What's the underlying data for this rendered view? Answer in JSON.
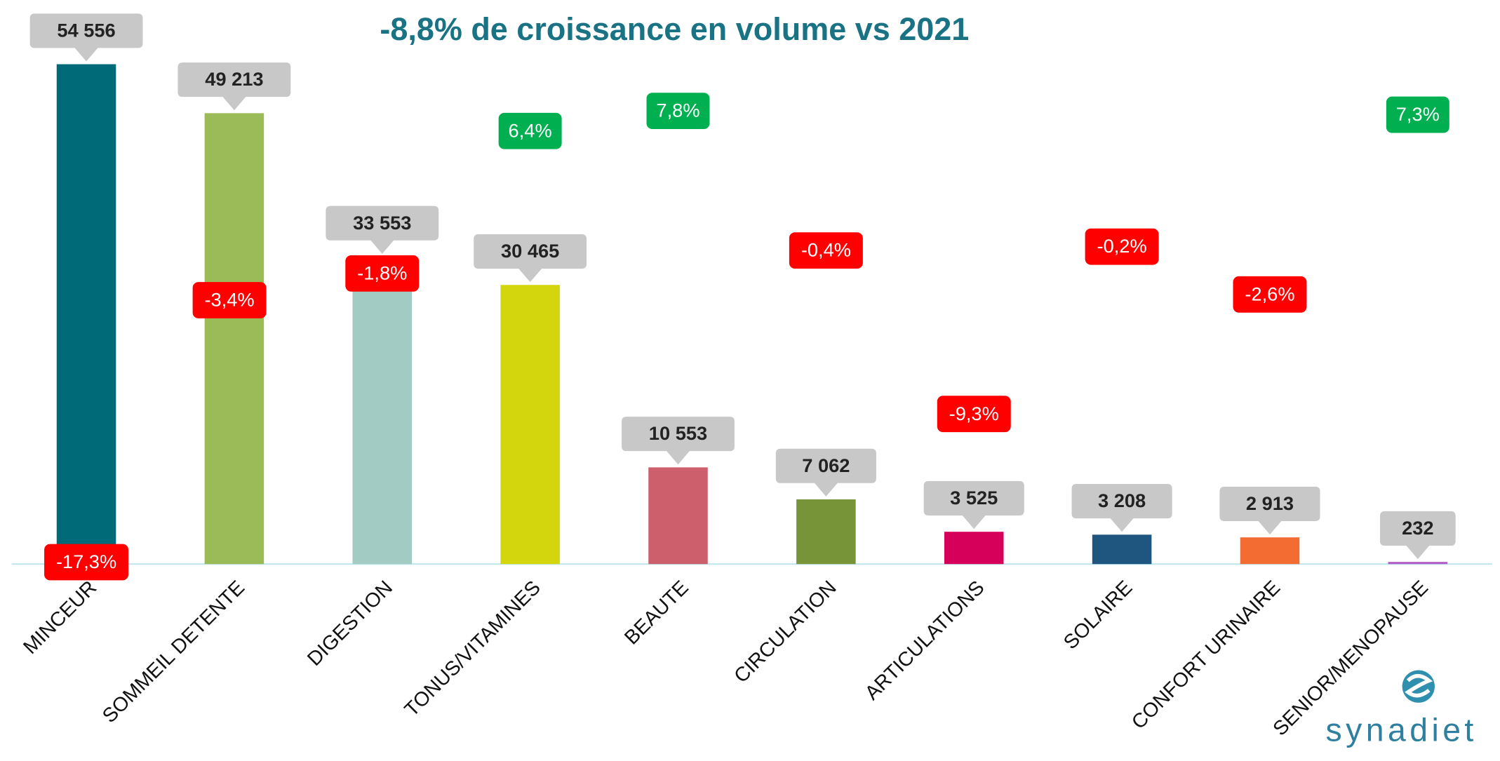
{
  "chart_data": {
    "type": "bar",
    "title": "-8,8% de croissance en volume vs 2021",
    "categories": [
      "MINCEUR",
      "SOMMEIL DETENTE",
      "DIGESTION",
      "TONUS/VITAMINES",
      "BEAUTE",
      "CIRCULATION",
      "ARTICULATIONS",
      "SOLAIRE",
      "CONFORT URINAIRE",
      "SENIOR/MENOPAUSE"
    ],
    "series": [
      {
        "values": [
          54556,
          49213,
          33553,
          30465,
          10553,
          7062,
          3525,
          3208,
          2913,
          232
        ],
        "value_labels": [
          "54 556",
          "49 213",
          "33 553",
          "30 465",
          "10 553",
          "7 062",
          "3 525",
          "3 208",
          "2 913",
          "232"
        ],
        "colors": [
          "#006a78",
          "#9bbb59",
          "#a2cbc3",
          "#d3d60c",
          "#cd5f6c",
          "#779438",
          "#d6005b",
          "#1f5680",
          "#f36c32",
          "#b05cc8"
        ]
      },
      {
        "name": "croissance",
        "values": [
          -17.3,
          -3.4,
          -1.8,
          6.4,
          7.8,
          -0.4,
          -9.3,
          -0.2,
          -2.6,
          7.3
        ],
        "value_labels": [
          "-17,3%",
          "-3,4%",
          "-1,8%",
          "6,4%",
          "7,8%",
          "-0,4%",
          "-9,3%",
          "-0,2%",
          "-2,6%",
          "7,3%"
        ]
      }
    ],
    "ylim": [
      0,
      60000
    ],
    "logo": "synadiet"
  }
}
